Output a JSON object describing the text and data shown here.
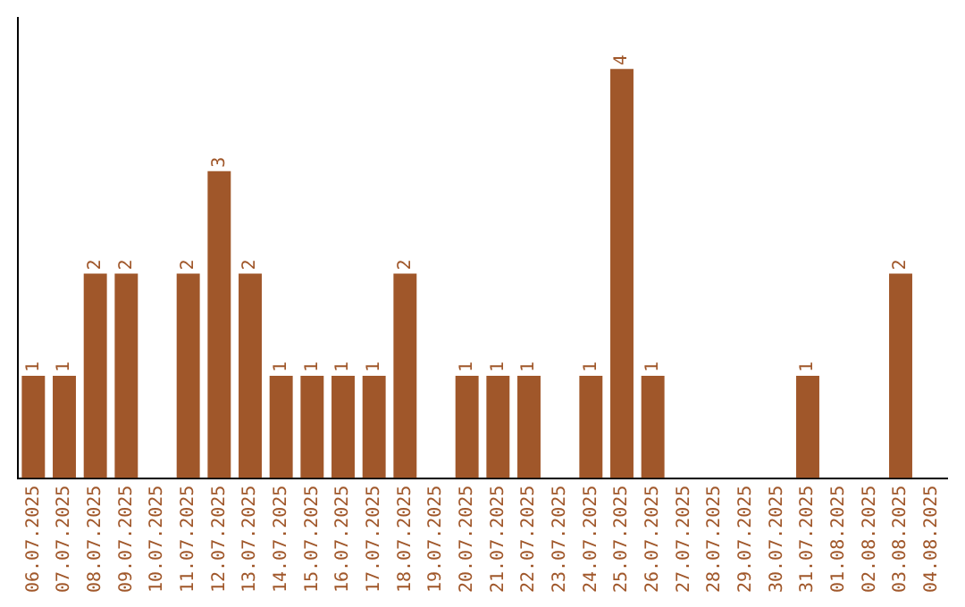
{
  "chart_data": {
    "type": "bar",
    "categories": [
      "06.07.2025",
      "07.07.2025",
      "08.07.2025",
      "09.07.2025",
      "10.07.2025",
      "11.07.2025",
      "12.07.2025",
      "13.07.2025",
      "14.07.2025",
      "15.07.2025",
      "16.07.2025",
      "17.07.2025",
      "18.07.2025",
      "19.07.2025",
      "20.07.2025",
      "21.07.2025",
      "22.07.2025",
      "23.07.2025",
      "24.07.2025",
      "25.07.2025",
      "26.07.2025",
      "27.07.2025",
      "28.07.2025",
      "29.07.2025",
      "30.07.2025",
      "31.07.2025",
      "01.08.2025",
      "02.08.2025",
      "03.08.2025",
      "04.08.2025"
    ],
    "values": [
      1,
      1,
      2,
      2,
      0,
      2,
      3,
      2,
      1,
      1,
      1,
      1,
      2,
      0,
      1,
      1,
      1,
      0,
      1,
      4,
      1,
      0,
      0,
      0,
      0,
      1,
      0,
      0,
      2,
      0
    ],
    "value_labels": [
      "1",
      "1",
      "2",
      "2",
      null,
      "2",
      "3",
      "2",
      "1",
      "1",
      "1",
      "1",
      "2",
      null,
      "1",
      "1",
      "1",
      null,
      "1",
      "4",
      "1",
      null,
      null,
      null,
      null,
      "1",
      null,
      null,
      "2",
      null
    ],
    "color": "#a0572a",
    "grid": false,
    "legend": false,
    "tick_labels": "x"
  }
}
